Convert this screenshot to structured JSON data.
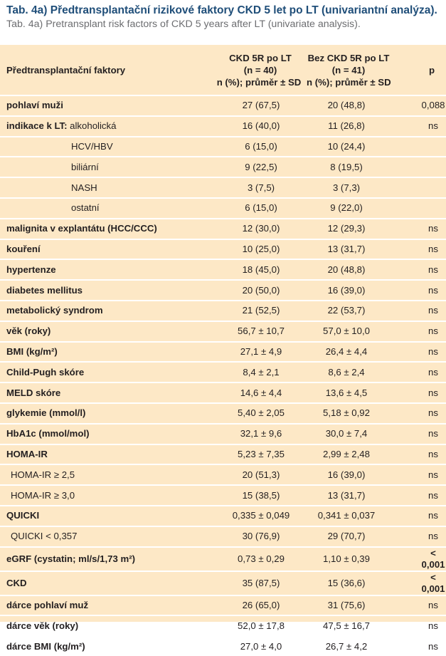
{
  "caption": {
    "title": "Tab. 4a) Předtransplantační rizikové faktory CKD 5 let po LT (univariantní analýza).",
    "subtitle": "Tab. 4a) Pretransplant risk factors of CKD 5 years after LT (univariate analysis)."
  },
  "header": {
    "col1": "Předtransplantační faktory",
    "col2": [
      "CKD 5R po LT",
      "(n = 40)",
      "n (%); průměr ± SD"
    ],
    "col3": [
      "Bez CKD 5R po LT",
      "(n = 41)",
      "n (%); průměr ± SD"
    ],
    "col4": "p"
  },
  "rows": [
    {
      "label": "pohlaví muži",
      "style": "bold",
      "a": "27 (67,5)",
      "b": "20 (48,8)",
      "p": "0,088",
      "p_bold": false
    },
    {
      "label": "indikace k LT:",
      "suffix": " alkoholická",
      "style": "bold",
      "a": "16 (40,0)",
      "b": "11 (26,8)",
      "p": "ns",
      "p_bold": false
    },
    {
      "label": "HCV/HBV",
      "style": "indent2",
      "a": "6 (15,0)",
      "b": "10 (24,4)",
      "p": "",
      "p_bold": false
    },
    {
      "label": "biliární",
      "style": "indent2",
      "a": "9 (22,5)",
      "b": "8 (19,5)",
      "p": "",
      "p_bold": false
    },
    {
      "label": "NASH",
      "style": "indent2",
      "a": "3 (7,5)",
      "b": "3 (7,3)",
      "p": "",
      "p_bold": false
    },
    {
      "label": "ostatní",
      "style": "indent2",
      "a": "6 (15,0)",
      "b": "9 (22,0)",
      "p": "",
      "p_bold": false
    },
    {
      "label": "malignita v explantátu (HCC/CCC)",
      "style": "bold",
      "a": "12 (30,0)",
      "b": "12 (29,3)",
      "p": "ns",
      "p_bold": false
    },
    {
      "label": "kouření",
      "style": "bold",
      "a": "10 (25,0)",
      "b": "13 (31,7)",
      "p": "ns",
      "p_bold": false
    },
    {
      "label": "hypertenze",
      "style": "bold",
      "a": "18 (45,0)",
      "b": "20 (48,8)",
      "p": "ns",
      "p_bold": false
    },
    {
      "label": "diabetes mellitus",
      "style": "bold",
      "a": "20 (50,0)",
      "b": "16 (39,0)",
      "p": "ns",
      "p_bold": false
    },
    {
      "label": "metabolický syndrom",
      "style": "bold",
      "a": "21 (52,5)",
      "b": "22 (53,7)",
      "p": "ns",
      "p_bold": false
    },
    {
      "label": "věk (roky)",
      "style": "bold",
      "a": "56,7 ± 10,7",
      "b": "57,0 ± 10,0",
      "p": "ns",
      "p_bold": false
    },
    {
      "label": "BMI (kg/m²)",
      "style": "bold",
      "a": "27,1 ± 4,9",
      "b": "26,4 ± 4,4",
      "p": "ns",
      "p_bold": false
    },
    {
      "label": "Child-Pugh skóre",
      "style": "bold",
      "a": "8,4 ± 2,1",
      "b": "8,6 ± 2,4",
      "p": "ns",
      "p_bold": false
    },
    {
      "label": "MELD skóre",
      "style": "bold",
      "a": "14,6 ± 4,4",
      "b": "13,6 ± 4,5",
      "p": "ns",
      "p_bold": false
    },
    {
      "label": "glykemie (mmol/l)",
      "style": "bold",
      "a": "5,40 ± 2,05",
      "b": "5,18 ± 0,92",
      "p": "ns",
      "p_bold": false
    },
    {
      "label": "HbA1c (mmol/mol)",
      "style": "bold",
      "a": "32,1 ± 9,6",
      "b": "30,0 ± 7,4",
      "p": "ns",
      "p_bold": false
    },
    {
      "label": "HOMA-IR",
      "style": "bold",
      "a": "5,23 ± 7,35",
      "b": "2,99 ± 2,48",
      "p": "ns",
      "p_bold": false
    },
    {
      "label": "HOMA-IR ≥ 2,5",
      "style": "indent1",
      "a": "20 (51,3)",
      "b": "16 (39,0)",
      "p": "ns",
      "p_bold": false
    },
    {
      "label": "HOMA-IR ≥ 3,0",
      "style": "indent1",
      "a": "15 (38,5)",
      "b": "13 (31,7)",
      "p": "ns",
      "p_bold": false
    },
    {
      "label": "QUICKI",
      "style": "bold",
      "a": "0,335 ± 0,049",
      "b": "0,341 ± 0,037",
      "p": "ns",
      "p_bold": false
    },
    {
      "label": "QUICKI < 0,357",
      "style": "indent1",
      "a": "30 (76,9)",
      "b": "29 (70,7)",
      "p": "ns",
      "p_bold": false
    },
    {
      "label": "eGRF (cystatin; ml/s/1,73 m²)",
      "style": "bold",
      "a": "0,73 ± 0,29",
      "b": "1,10 ± 0,39",
      "p": "< 0,001",
      "p_bold": true
    },
    {
      "label": "CKD",
      "style": "bold",
      "a": "35 (87,5)",
      "b": "15 (36,6)",
      "p": "< 0,001",
      "p_bold": true
    },
    {
      "label": "dárce pohlaví muž",
      "style": "bold",
      "a": "26 (65,0)",
      "b": "31 (75,6)",
      "p": "ns",
      "p_bold": false
    },
    {
      "label": "dárce věk (roky)",
      "style": "bold",
      "a": "52,0 ± 17,8",
      "b": "47,5 ± 16,7",
      "p": "ns",
      "p_bold": false
    },
    {
      "label": "dárce BMI (kg/m²)",
      "style": "bold",
      "a": "27,0 ± 4,0",
      "b": "26,7 ± 4,2",
      "p": "ns",
      "p_bold": false
    }
  ],
  "colors": {
    "title": "#1f4e79",
    "subtitle": "#6d6e71",
    "table_bg": "#fde8c6",
    "row_divider": "#ffffff"
  }
}
